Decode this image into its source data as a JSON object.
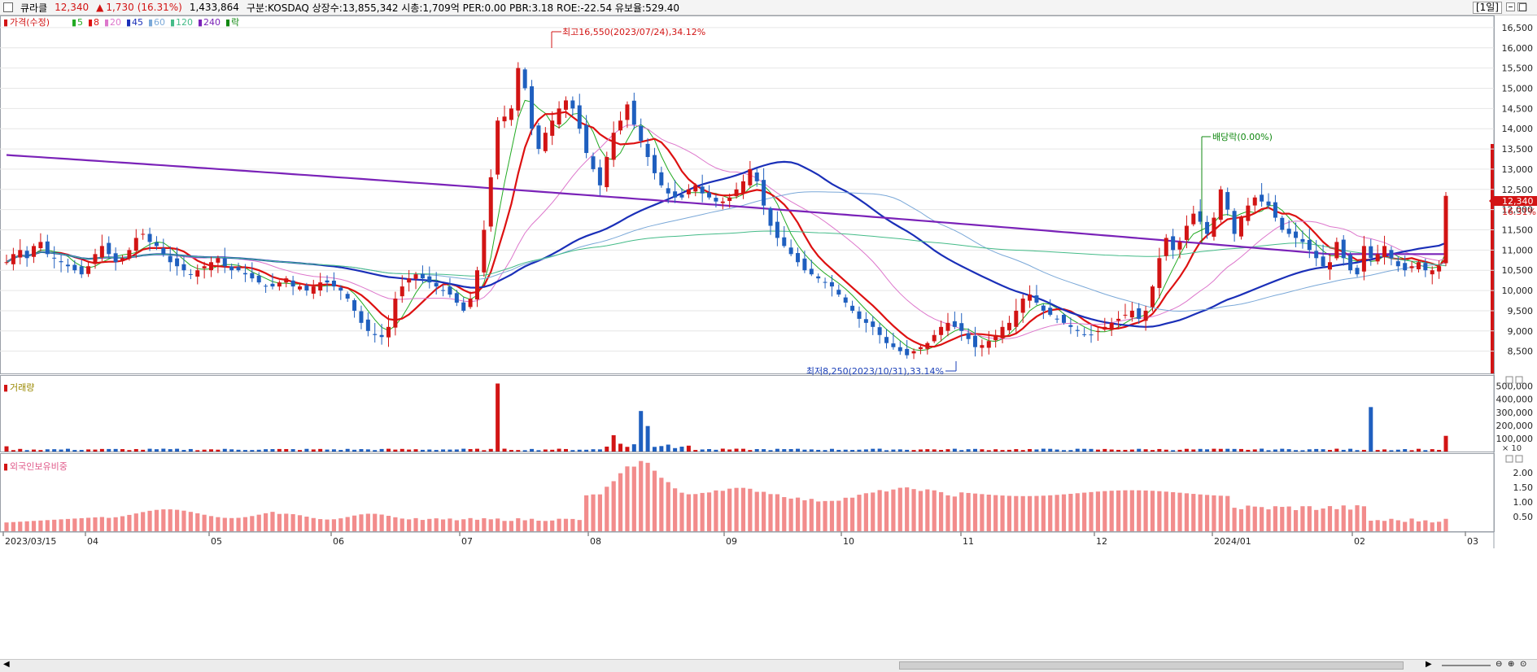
{
  "header": {
    "name": "큐라클",
    "price": "12,340",
    "arrow": "▲",
    "change": "1,730",
    "change_pct": "(16.31%)",
    "volume": "1,433,864",
    "stats": "구분:KOSDAQ 상장수:13,855,342 시총:1,709억 PER:0.00 PBR:3.18 ROE:-22.54 유보율:529.40",
    "period": "[1일]"
  },
  "legend": {
    "price_label": "가격(수정)",
    "ma_items": [
      {
        "label": "5",
        "color": "#22aa22"
      },
      {
        "label": "8",
        "color": "#dd1111"
      },
      {
        "label": "20",
        "color": "#dd77cc"
      },
      {
        "label": "45",
        "color": "#1a2fb8"
      },
      {
        "label": "60",
        "color": "#7aa8d8"
      },
      {
        "label": "120",
        "color": "#44bb88"
      },
      {
        "label": "240",
        "color": "#7a22b8"
      },
      {
        "label": "락",
        "color": "#118811"
      }
    ]
  },
  "annotations": {
    "high": "최고16,550(2023/07/24),34.12%",
    "low": "최저8,250(2023/10/31),33.14%",
    "dividend": "배당락(0.00%)",
    "price_tag": "12,340",
    "pct_tag": "16.31%"
  },
  "volume_panel": {
    "title": "거래량",
    "unit": "× 10"
  },
  "foreign_panel": {
    "title": "외국인보유비중"
  },
  "chart_data": [
    {
      "type": "candlestick",
      "title": "가격(수정)",
      "x_ticks": [
        "2023/03/15",
        "04",
        "05",
        "06",
        "07",
        "08",
        "09",
        "10",
        "11",
        "12",
        "2024/01",
        "02",
        "03"
      ],
      "y_ticks": [
        8500,
        9000,
        9500,
        10000,
        10500,
        11000,
        11500,
        12000,
        12500,
        13000,
        13500,
        14000,
        14500,
        15000,
        15500,
        16000,
        16500
      ],
      "ylim": [
        7950,
        16800
      ],
      "grid": true,
      "closes": [
        10700,
        10900,
        11000,
        10800,
        11100,
        11200,
        10900,
        10800,
        10700,
        10600,
        10500,
        10400,
        10600,
        10900,
        11100,
        10900,
        10700,
        10800,
        11000,
        11300,
        11400,
        11200,
        11100,
        10900,
        10700,
        10600,
        10500,
        10400,
        10500,
        10600,
        10700,
        10800,
        10600,
        10500,
        10500,
        10400,
        10300,
        10200,
        10100,
        10100,
        10200,
        10300,
        10100,
        10100,
        10000,
        10100,
        10200,
        10200,
        10100,
        10000,
        9800,
        9500,
        9200,
        9000,
        8900,
        8850,
        9100,
        9800,
        10100,
        10300,
        10400,
        10300,
        10200,
        10100,
        10000,
        9900,
        9700,
        9500,
        9800,
        10500,
        11500,
        12800,
        14200,
        14300,
        14500,
        15500,
        15000,
        14000,
        13500,
        13900,
        14200,
        14500,
        14700,
        14500,
        14000,
        13400,
        13000,
        12600,
        13300,
        13900,
        14200,
        14600,
        14100,
        13700,
        13300,
        12900,
        12600,
        12400,
        12300,
        12300,
        12500,
        12600,
        12400,
        12300,
        12200,
        12200,
        12300,
        12500,
        12700,
        13000,
        12700,
        12100,
        11600,
        11300,
        11100,
        10900,
        10700,
        10500,
        10400,
        10300,
        10200,
        10100,
        9900,
        9700,
        9500,
        9300,
        9200,
        9100,
        8900,
        8700,
        8600,
        8500,
        8400,
        8500,
        8600,
        8700,
        8900,
        9100,
        9200,
        9100,
        9000,
        8800,
        8600,
        8650,
        8750,
        8900,
        9100,
        9200,
        9500,
        9800,
        9900,
        9700,
        9500,
        9400,
        9300,
        9200,
        9100,
        9000,
        8900,
        8900,
        9000,
        9100,
        9200,
        9300,
        9400,
        9500,
        9300,
        9500,
        10100,
        10800,
        11300,
        11000,
        11200,
        11600,
        11900,
        11700,
        11400,
        11800,
        12500,
        12000,
        11400,
        11800,
        12100,
        12300,
        12200,
        12100,
        11800,
        11500,
        11400,
        11300,
        11200,
        11000,
        10800,
        10600,
        10700,
        11200,
        10800,
        10500,
        10400,
        11100,
        10800,
        10900,
        11100,
        10800,
        10600,
        10500,
        10600,
        10700,
        10500,
        10500,
        10600,
        12340
      ],
      "moving_averages": [
        "5",
        "8",
        "20",
        "45",
        "60",
        "120",
        "240"
      ],
      "annotations": [
        "최고16,550(2023/07/24),34.12%",
        "최저8,250(2023/10/31),33.14%",
        "배당락(0.00%)"
      ],
      "last_value": 12340,
      "last_change_pct": 16.31
    },
    {
      "type": "bar",
      "title": "거래량",
      "unit": "× 10",
      "y_ticks": [
        100000,
        200000,
        300000,
        400000,
        500000
      ],
      "ylim": [
        0,
        560000
      ],
      "spikes": [
        {
          "date": "2023/06/23",
          "value": 520000
        },
        {
          "date": "2023/07/18",
          "value": 125000
        },
        {
          "date": "2023/07/24",
          "value": 310000
        },
        {
          "date": "2023/07/25",
          "value": 195000
        },
        {
          "date": "2024/02/16",
          "value": 340000
        },
        {
          "date": "2024/02/29",
          "value": 120000
        }
      ]
    },
    {
      "type": "bar",
      "title": "외국인보유비중",
      "y_ticks": [
        0.5,
        1.0,
        1.5,
        2.0
      ],
      "ylim": [
        0,
        2.5
      ],
      "peak": {
        "date": "2023/07/24",
        "value": 2.25
      }
    }
  ]
}
